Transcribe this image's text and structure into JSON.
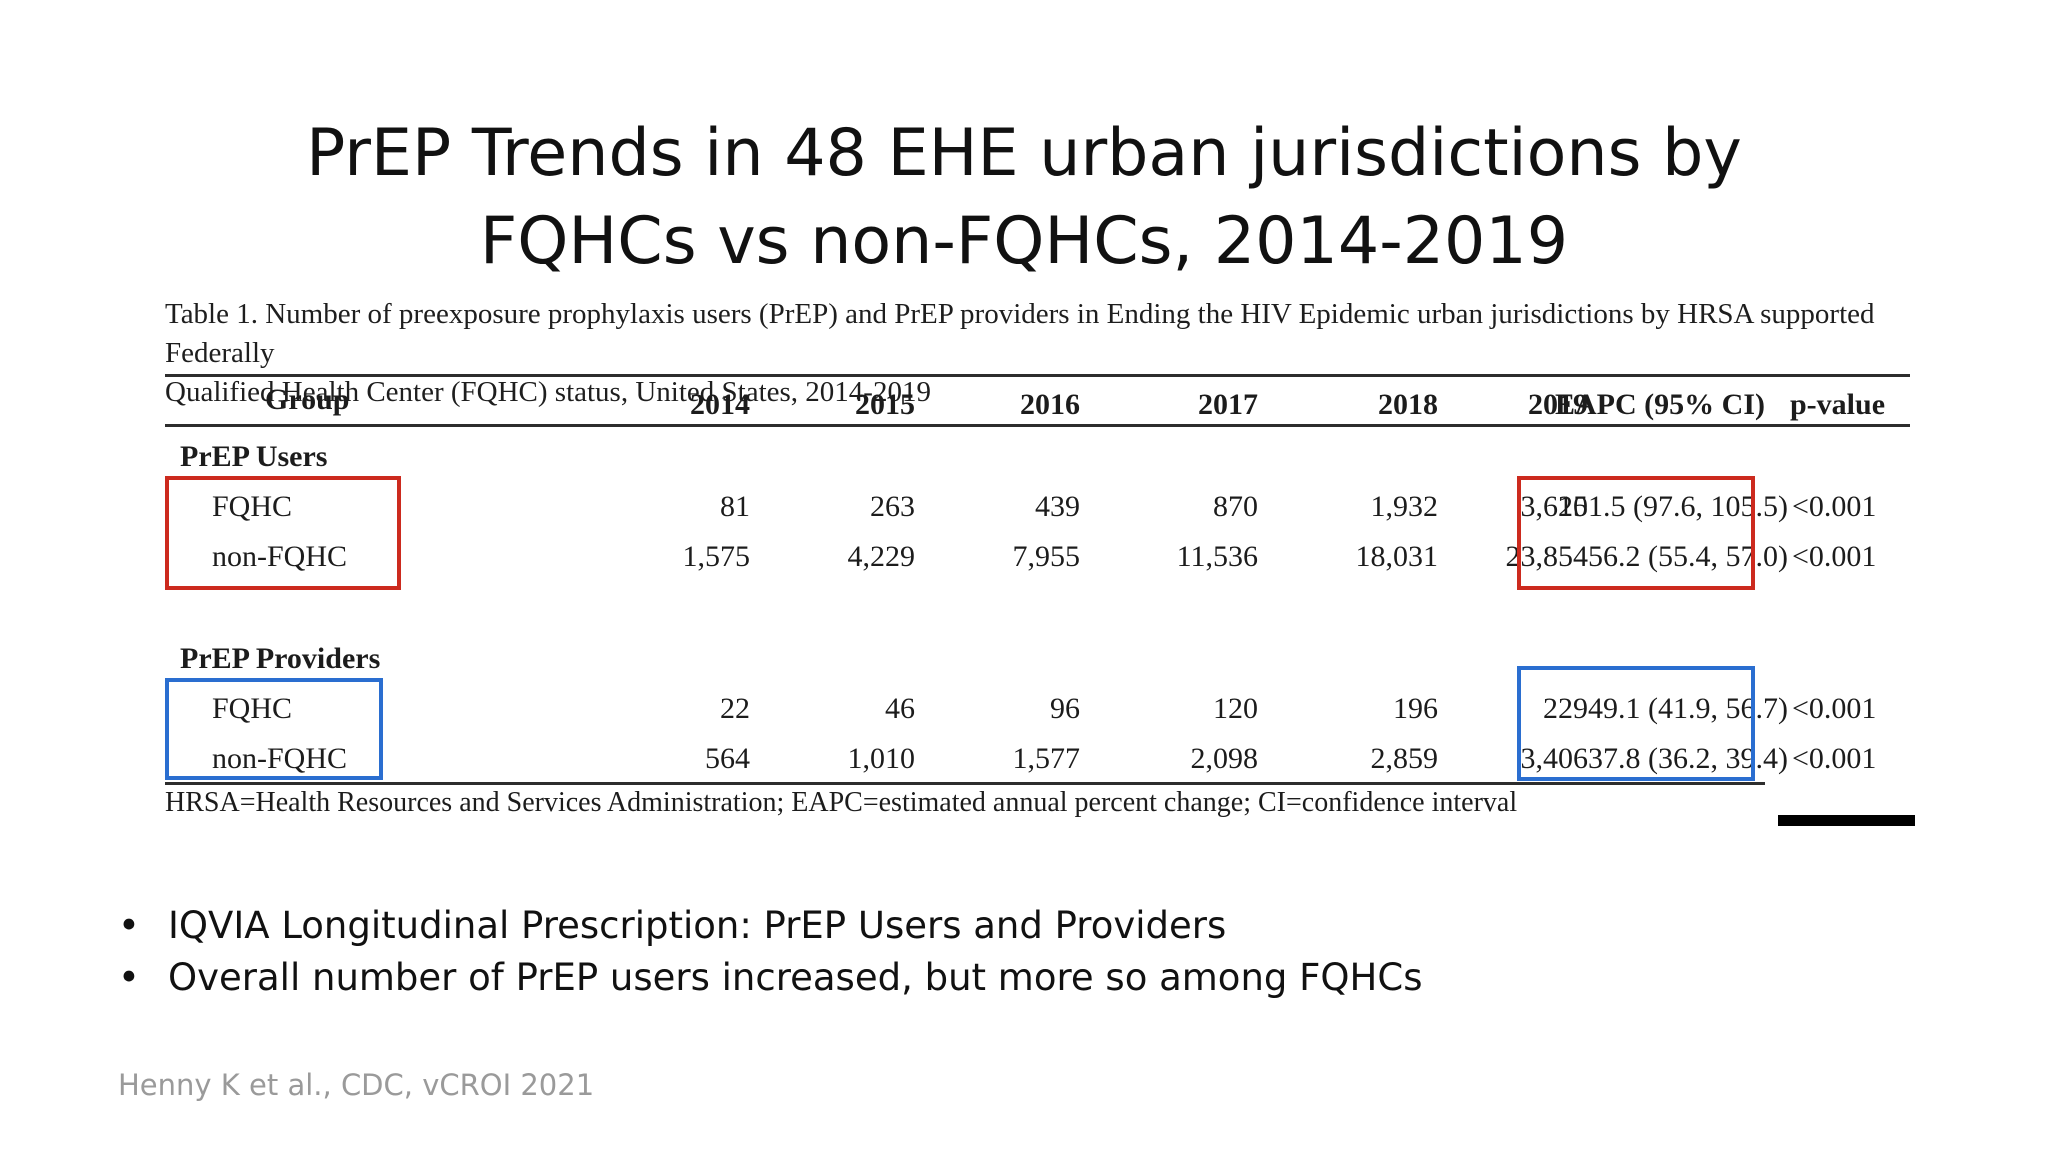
{
  "slide": {
    "title_line1": "PrEP Trends in 48 EHE urban jurisdictions by",
    "title_line2": "FQHCs vs non-FQHCs, 2014-2019"
  },
  "table": {
    "caption_line1": "Table 1. Number of preexposure prophylaxis users (PrEP) and PrEP providers in Ending the HIV Epidemic urban jurisdictions by HRSA supported Federally",
    "caption_line2": "Qualified Health Center (FQHC) status, United States, 2014-2019",
    "headers": [
      "Group",
      "2014",
      "2015",
      "2016",
      "2017",
      "2018",
      "2019",
      "EAPC (95% CI)",
      "p-value"
    ],
    "sections": [
      {
        "title": "PrEP Users",
        "rows": [
          {
            "group": "FQHC",
            "values": [
              "81",
              "263",
              "439",
              "870",
              "1,932",
              "3,625"
            ],
            "eapc": "101.5 (97.6, 105.5)",
            "pvalue": "<0.001"
          },
          {
            "group": "non-FQHC",
            "values": [
              "1,575",
              "4,229",
              "7,955",
              "11,536",
              "18,031",
              "23,854"
            ],
            "eapc": "56.2 (55.4, 57.0)",
            "pvalue": "<0.001"
          }
        ]
      },
      {
        "title": "PrEP Providers",
        "rows": [
          {
            "group": "FQHC",
            "values": [
              "22",
              "46",
              "96",
              "120",
              "196",
              "229"
            ],
            "eapc": "49.1 (41.9, 56.7)",
            "pvalue": "<0.001"
          },
          {
            "group": "non-FQHC",
            "values": [
              "564",
              "1,010",
              "1,577",
              "2,098",
              "2,859",
              "3,406"
            ],
            "eapc": "37.8 (36.2, 39.4)",
            "pvalue": "<0.001"
          }
        ]
      }
    ],
    "footnote": "HRSA=Health Resources and Services Administration; EAPC=estimated annual percent change; CI=confidence interval",
    "highlight_colors": {
      "users": "#cc2a1e",
      "providers": "#2a6ed0"
    }
  },
  "bullets": [
    {
      "marker": "•",
      "text": "IQVIA Longitudinal Prescription: PrEP Users and Providers"
    },
    {
      "marker": "•",
      "text": "Overall number of PrEP users increased, but more so among FQHCs"
    }
  ],
  "citation": "Henny K et al., CDC, vCROI 2021"
}
